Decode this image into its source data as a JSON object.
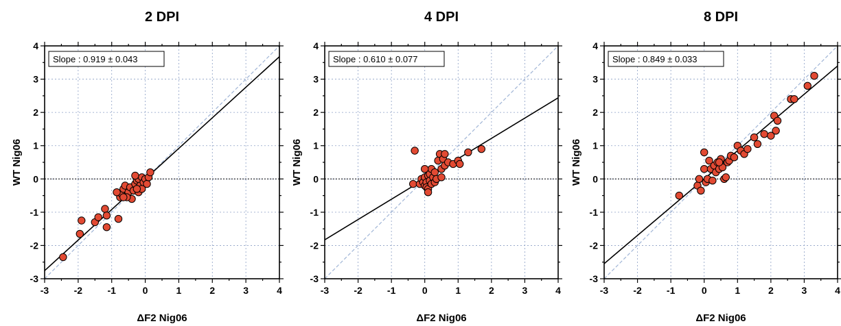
{
  "colors": {
    "point_fill": "#e24a33",
    "point_stroke": "#000000",
    "fit_line": "#000000",
    "identity_line": "#9fb4d6",
    "grid": "#8a9ec4",
    "zero_line": "#000000"
  },
  "chart_data": [
    {
      "type": "scatter",
      "title": "2 DPI",
      "xlabel": "ΔF2 Nig06",
      "ylabel": "WT Nig06",
      "xlim": [
        -3,
        4
      ],
      "ylim": [
        -3,
        4
      ],
      "xticks": [
        "-3",
        "-2",
        "-1",
        "0",
        "1",
        "2",
        "3",
        "4"
      ],
      "yticks": [
        "-3",
        "-2",
        "-1",
        "0",
        "1",
        "2",
        "3",
        "4"
      ],
      "grid": true,
      "legend": "none",
      "annotation": "Slope : 0.919 ± 0.043",
      "fit_line": {
        "slope": 0.919,
        "intercept": 0.0
      },
      "identity_line": true,
      "points": [
        [
          -2.45,
          -2.35
        ],
        [
          -1.95,
          -1.65
        ],
        [
          -1.9,
          -1.25
        ],
        [
          -1.5,
          -1.3
        ],
        [
          -1.4,
          -1.15
        ],
        [
          -1.2,
          -0.9
        ],
        [
          -1.15,
          -1.1
        ],
        [
          -1.15,
          -1.45
        ],
        [
          -0.8,
          -1.2
        ],
        [
          -0.75,
          -0.55
        ],
        [
          -0.7,
          -0.45
        ],
        [
          -0.65,
          -0.3
        ],
        [
          -0.6,
          -0.2
        ],
        [
          -0.55,
          -0.5
        ],
        [
          -0.5,
          -0.4
        ],
        [
          -0.45,
          -0.25
        ],
        [
          -0.4,
          -0.6
        ],
        [
          -0.35,
          -0.35
        ],
        [
          -0.3,
          -0.15
        ],
        [
          -0.25,
          -0.05
        ],
        [
          -0.2,
          0.0
        ],
        [
          -0.2,
          -0.4
        ],
        [
          -0.15,
          -0.2
        ],
        [
          -0.1,
          0.05
        ],
        [
          -0.1,
          -0.3
        ],
        [
          -0.05,
          -0.1
        ],
        [
          0.0,
          0.0
        ],
        [
          0.05,
          -0.15
        ],
        [
          0.1,
          0.05
        ],
        [
          0.15,
          0.2
        ],
        [
          -0.3,
          0.1
        ],
        [
          -0.55,
          -0.55
        ],
        [
          -0.85,
          -0.4
        ],
        [
          -0.65,
          -0.55
        ],
        [
          -0.25,
          -0.3
        ]
      ]
    },
    {
      "type": "scatter",
      "title": "4 DPI",
      "xlabel": "ΔF2 Nig06",
      "ylabel": "WT Nig06",
      "xlim": [
        -3,
        4
      ],
      "ylim": [
        -3,
        4
      ],
      "xticks": [
        "-3",
        "-2",
        "-1",
        "0",
        "1",
        "2",
        "3",
        "4"
      ],
      "yticks": [
        "-3",
        "-2",
        "-1",
        "0",
        "1",
        "2",
        "3",
        "4"
      ],
      "grid": true,
      "legend": "none",
      "annotation": "Slope : 0.610 ± 0.077",
      "fit_line": {
        "slope": 0.61,
        "intercept": 0.0
      },
      "identity_line": true,
      "points": [
        [
          -0.3,
          0.85
        ],
        [
          -0.35,
          -0.15
        ],
        [
          -0.15,
          -0.15
        ],
        [
          -0.1,
          0.0
        ],
        [
          -0.05,
          -0.1
        ],
        [
          0.0,
          -0.2
        ],
        [
          0.0,
          0.05
        ],
        [
          0.05,
          -0.1
        ],
        [
          0.05,
          -0.25
        ],
        [
          0.1,
          -0.3
        ],
        [
          0.1,
          0.1
        ],
        [
          0.15,
          -0.05
        ],
        [
          0.15,
          0.15
        ],
        [
          0.2,
          -0.15
        ],
        [
          0.2,
          0.3
        ],
        [
          0.25,
          0.05
        ],
        [
          0.3,
          -0.1
        ],
        [
          0.3,
          0.2
        ],
        [
          0.35,
          0.0
        ],
        [
          0.4,
          0.55
        ],
        [
          0.45,
          0.75
        ],
        [
          0.5,
          0.3
        ],
        [
          0.55,
          0.6
        ],
        [
          0.6,
          0.75
        ],
        [
          0.6,
          0.4
        ],
        [
          0.7,
          0.5
        ],
        [
          0.85,
          0.45
        ],
        [
          1.0,
          0.55
        ],
        [
          1.05,
          0.45
        ],
        [
          1.3,
          0.8
        ],
        [
          1.7,
          0.9
        ],
        [
          0.1,
          -0.4
        ],
        [
          0.5,
          0.05
        ],
        [
          0.0,
          0.3
        ]
      ]
    },
    {
      "type": "scatter",
      "title": "8 DPI",
      "xlabel": "ΔF2 Nig06",
      "ylabel": "WT Nig06",
      "xlim": [
        -3,
        4
      ],
      "ylim": [
        -3,
        4
      ],
      "xticks": [
        "-3",
        "-2",
        "-1",
        "0",
        "1",
        "2",
        "3",
        "4"
      ],
      "yticks": [
        "-3",
        "-2",
        "-1",
        "0",
        "1",
        "2",
        "3",
        "4"
      ],
      "grid": true,
      "legend": "none",
      "annotation": "Slope : 0.849 ± 0.033",
      "fit_line": {
        "slope": 0.849,
        "intercept": 0.0
      },
      "identity_line": true,
      "points": [
        [
          -0.75,
          -0.5
        ],
        [
          -0.2,
          -0.2
        ],
        [
          -0.15,
          0.0
        ],
        [
          -0.1,
          -0.35
        ],
        [
          0.0,
          0.8
        ],
        [
          0.0,
          0.3
        ],
        [
          0.05,
          -0.1
        ],
        [
          0.1,
          0.0
        ],
        [
          0.2,
          0.3
        ],
        [
          0.25,
          -0.05
        ],
        [
          0.3,
          0.4
        ],
        [
          0.35,
          0.2
        ],
        [
          0.4,
          0.5
        ],
        [
          0.45,
          0.3
        ],
        [
          0.5,
          0.6
        ],
        [
          0.55,
          0.35
        ],
        [
          0.6,
          0.0
        ],
        [
          0.65,
          0.05
        ],
        [
          0.7,
          0.5
        ],
        [
          0.75,
          0.55
        ],
        [
          0.8,
          0.7
        ],
        [
          0.9,
          0.65
        ],
        [
          1.0,
          1.0
        ],
        [
          1.1,
          0.85
        ],
        [
          1.2,
          0.75
        ],
        [
          1.3,
          0.9
        ],
        [
          1.5,
          1.25
        ],
        [
          1.6,
          1.05
        ],
        [
          1.8,
          1.35
        ],
        [
          2.0,
          1.3
        ],
        [
          2.1,
          1.9
        ],
        [
          2.15,
          1.45
        ],
        [
          2.2,
          1.75
        ],
        [
          2.6,
          2.4
        ],
        [
          2.7,
          2.4
        ],
        [
          3.1,
          2.8
        ],
        [
          3.3,
          3.1
        ],
        [
          0.15,
          0.55
        ],
        [
          0.45,
          0.5
        ]
      ]
    }
  ]
}
